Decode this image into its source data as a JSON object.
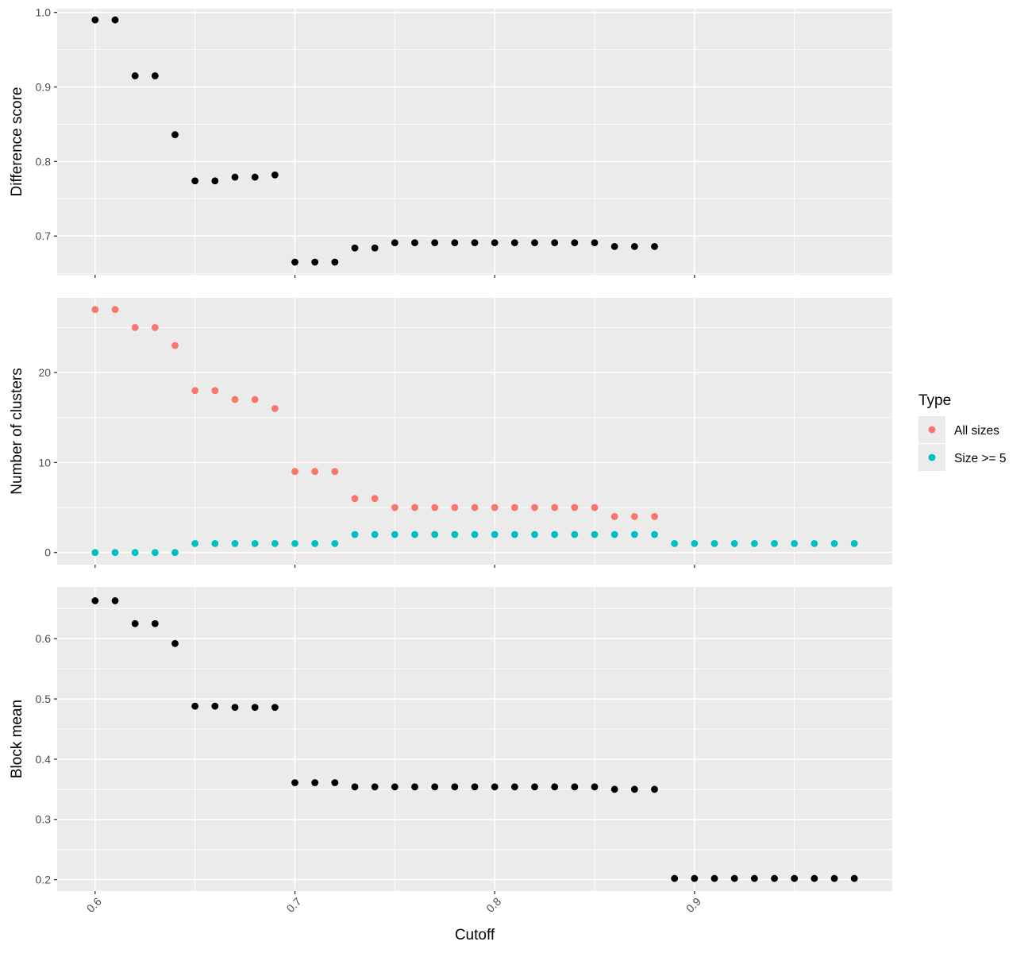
{
  "chart_data": {
    "type": "scatter",
    "shared_x": {
      "label": "Cutoff",
      "lim": [
        0.581,
        0.999
      ],
      "major_ticks": [
        0.6,
        0.7,
        0.8,
        0.9
      ],
      "tick_labels": [
        "0.6",
        "0.7",
        "0.8",
        "0.9"
      ],
      "tick_label_rotation": "45 degrees"
    },
    "grid": true,
    "panels": [
      {
        "ylabel": "Difference score",
        "ylim": [
          0.648,
          1.005
        ],
        "y_major_ticks": [
          0.7,
          0.8,
          0.9,
          1.0
        ],
        "y_tick_labels": [
          "0.7",
          "0.8",
          "0.9",
          "1.0"
        ],
        "series": [
          {
            "color": "#000000",
            "x": [
              0.6,
              0.61,
              0.62,
              0.63,
              0.64,
              0.65,
              0.66,
              0.67,
              0.68,
              0.69,
              0.7,
              0.71,
              0.72,
              0.73,
              0.74,
              0.75,
              0.76,
              0.77,
              0.78,
              0.79,
              0.8,
              0.81,
              0.82,
              0.83,
              0.84,
              0.85,
              0.86,
              0.87,
              0.88
            ],
            "y": [
              0.99,
              0.99,
              0.915,
              0.915,
              0.836,
              0.774,
              0.774,
              0.779,
              0.779,
              0.782,
              0.665,
              0.665,
              0.665,
              0.684,
              0.684,
              0.691,
              0.691,
              0.691,
              0.691,
              0.691,
              0.691,
              0.691,
              0.691,
              0.691,
              0.691,
              0.691,
              0.686,
              0.686,
              0.686
            ]
          }
        ]
      },
      {
        "ylabel": "Number of clusters",
        "ylim": [
          -1.35,
          28.3
        ],
        "y_major_ticks": [
          0,
          10,
          20
        ],
        "y_tick_labels": [
          "0",
          "10",
          "20"
        ],
        "series": [
          {
            "name": "All sizes",
            "color": "#f8766d",
            "x": [
              0.6,
              0.61,
              0.62,
              0.63,
              0.64,
              0.65,
              0.66,
              0.67,
              0.68,
              0.69,
              0.7,
              0.71,
              0.72,
              0.73,
              0.74,
              0.75,
              0.76,
              0.77,
              0.78,
              0.79,
              0.8,
              0.81,
              0.82,
              0.83,
              0.84,
              0.85,
              0.86,
              0.87,
              0.88
            ],
            "y": [
              27,
              27,
              25,
              25,
              23,
              18,
              18,
              17,
              17,
              16,
              9,
              9,
              9,
              6,
              6,
              5,
              5,
              5,
              5,
              5,
              5,
              5,
              5,
              5,
              5,
              5,
              4,
              4,
              4
            ]
          },
          {
            "name": "Size >= 5",
            "color": "#00bfc4",
            "x": [
              0.6,
              0.61,
              0.62,
              0.63,
              0.64,
              0.65,
              0.66,
              0.67,
              0.68,
              0.69,
              0.7,
              0.71,
              0.72,
              0.73,
              0.74,
              0.75,
              0.76,
              0.77,
              0.78,
              0.79,
              0.8,
              0.81,
              0.82,
              0.83,
              0.84,
              0.85,
              0.86,
              0.87,
              0.88,
              0.89,
              0.9,
              0.91,
              0.92,
              0.93,
              0.94,
              0.95,
              0.96,
              0.97,
              0.98
            ],
            "y": [
              0,
              0,
              0,
              0,
              0,
              1,
              1,
              1,
              1,
              1,
              1,
              1,
              1,
              2,
              2,
              2,
              2,
              2,
              2,
              2,
              2,
              2,
              2,
              2,
              2,
              2,
              2,
              2,
              2,
              1,
              1,
              1,
              1,
              1,
              1,
              1,
              1,
              1,
              1
            ]
          }
        ]
      },
      {
        "ylabel": "Block mean",
        "ylim": [
          0.181,
          0.686
        ],
        "y_major_ticks": [
          0.2,
          0.3,
          0.4,
          0.5,
          0.6
        ],
        "y_tick_labels": [
          "0.2",
          "0.3",
          "0.4",
          "0.5",
          "0.6"
        ],
        "series": [
          {
            "color": "#000000",
            "x": [
              0.6,
              0.61,
              0.62,
              0.63,
              0.64,
              0.65,
              0.66,
              0.67,
              0.68,
              0.69,
              0.7,
              0.71,
              0.72,
              0.73,
              0.74,
              0.75,
              0.76,
              0.77,
              0.78,
              0.79,
              0.8,
              0.81,
              0.82,
              0.83,
              0.84,
              0.85,
              0.86,
              0.87,
              0.88,
              0.89,
              0.9,
              0.91,
              0.92,
              0.93,
              0.94,
              0.95,
              0.96,
              0.97,
              0.98
            ],
            "y": [
              0.663,
              0.663,
              0.625,
              0.625,
              0.592,
              0.488,
              0.488,
              0.486,
              0.486,
              0.486,
              0.361,
              0.361,
              0.361,
              0.354,
              0.354,
              0.354,
              0.354,
              0.354,
              0.354,
              0.354,
              0.354,
              0.354,
              0.354,
              0.354,
              0.354,
              0.354,
              0.35,
              0.35,
              0.35,
              0.202,
              0.202,
              0.202,
              0.202,
              0.202,
              0.202,
              0.202,
              0.202,
              0.202,
              0.202
            ]
          }
        ]
      }
    ],
    "legend": {
      "title": "Type",
      "position": "right",
      "entries": [
        {
          "label": "All sizes",
          "color": "#f8766d"
        },
        {
          "label": "Size >= 5",
          "color": "#00bfc4"
        }
      ]
    }
  }
}
